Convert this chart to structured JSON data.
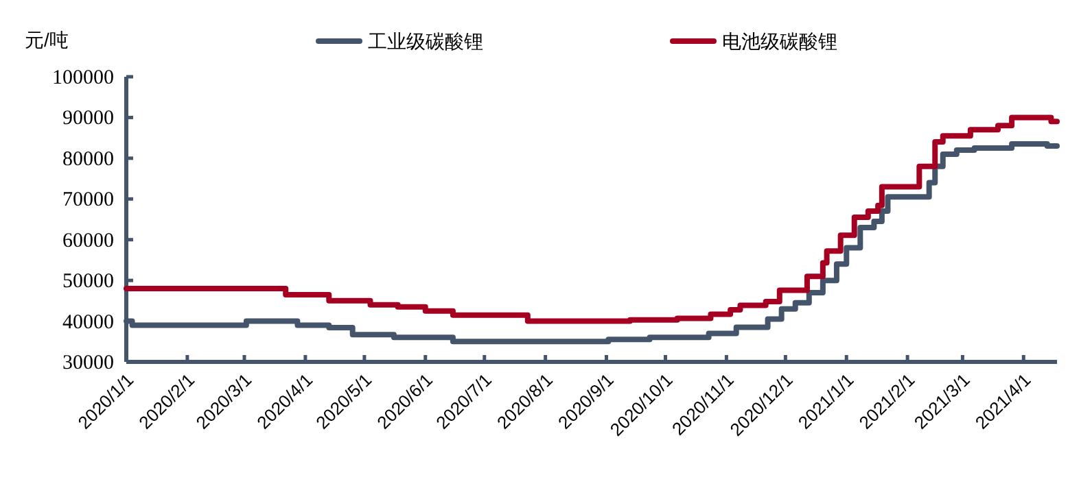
{
  "chart_data": {
    "type": "step",
    "ylabel": "元/吨",
    "legend": "top",
    "xlim": [
      "2020-01-01",
      "2021-04-18"
    ],
    "xticks": [
      {
        "value": "2020-01-01",
        "label": "2020/1/1"
      },
      {
        "value": "2020-02-01",
        "label": "2020/2/1"
      },
      {
        "value": "2020-03-01",
        "label": "2020/3/1"
      },
      {
        "value": "2020-04-01",
        "label": "2020/4/1"
      },
      {
        "value": "2020-05-01",
        "label": "2020/5/1"
      },
      {
        "value": "2020-06-01",
        "label": "2020/6/1"
      },
      {
        "value": "2020-07-01",
        "label": "2020/7/1"
      },
      {
        "value": "2020-08-01",
        "label": "2020/8/1"
      },
      {
        "value": "2020-09-01",
        "label": "2020/9/1"
      },
      {
        "value": "2020-10-01",
        "label": "2020/10/1"
      },
      {
        "value": "2020-11-01",
        "label": "2020/11/1"
      },
      {
        "value": "2020-12-01",
        "label": "2020/12/1"
      },
      {
        "value": "2021-01-01",
        "label": "2021/1/1"
      },
      {
        "value": "2021-02-01",
        "label": "2021/2/1"
      },
      {
        "value": "2021-03-01",
        "label": "2021/3/1"
      },
      {
        "value": "2021-04-01",
        "label": "2021/4/1"
      }
    ],
    "ylim": [
      30000,
      100000
    ],
    "yticks": [
      30000,
      40000,
      50000,
      60000,
      70000,
      80000,
      90000,
      100000
    ],
    "series": [
      {
        "name": "工业级碳酸锂",
        "color": "#44546a",
        "x": [
          "2020-01-01",
          "2020-01-04",
          "2020-03-02",
          "2020-03-28",
          "2020-04-13",
          "2020-04-25",
          "2020-05-16",
          "2020-06-15",
          "2020-09-02",
          "2020-09-23",
          "2020-10-23",
          "2020-11-06",
          "2020-11-22",
          "2020-11-29",
          "2020-12-06",
          "2020-12-13",
          "2020-12-20",
          "2020-12-27",
          "2021-01-01",
          "2021-01-08",
          "2021-01-15",
          "2021-01-19",
          "2021-01-22",
          "2021-02-12",
          "2021-02-15",
          "2021-02-19",
          "2021-02-26",
          "2021-03-07",
          "2021-03-26",
          "2021-04-13",
          "2021-04-18"
        ],
        "values": [
          40000,
          39000,
          40000,
          39000,
          38400,
          36700,
          36000,
          35000,
          35500,
          36000,
          37000,
          38500,
          40500,
          43000,
          44500,
          47000,
          50000,
          54000,
          58000,
          63000,
          64500,
          67000,
          70500,
          74000,
          78000,
          81000,
          82000,
          82500,
          83500,
          83000,
          83000
        ]
      },
      {
        "name": "电池级碳酸锂",
        "color": "#a50021",
        "x": [
          "2020-01-01",
          "2020-03-22",
          "2020-04-13",
          "2020-05-04",
          "2020-05-18",
          "2020-06-01",
          "2020-06-15",
          "2020-07-23",
          "2020-09-13",
          "2020-10-07",
          "2020-10-24",
          "2020-11-03",
          "2020-11-08",
          "2020-11-21",
          "2020-11-28",
          "2020-12-12",
          "2020-12-20",
          "2020-12-22",
          "2020-12-29",
          "2021-01-05",
          "2021-01-12",
          "2021-01-17",
          "2021-01-19",
          "2021-02-07",
          "2021-02-15",
          "2021-02-19",
          "2021-03-05",
          "2021-03-19",
          "2021-03-26",
          "2021-04-15",
          "2021-04-18"
        ],
        "values": [
          48000,
          46500,
          45000,
          44000,
          43500,
          42500,
          41500,
          40000,
          40300,
          40700,
          41700,
          42800,
          43900,
          44800,
          47600,
          51000,
          54300,
          57200,
          61100,
          65500,
          67000,
          68400,
          73000,
          78000,
          84000,
          85500,
          87000,
          88000,
          90000,
          89000,
          89000
        ]
      }
    ]
  }
}
